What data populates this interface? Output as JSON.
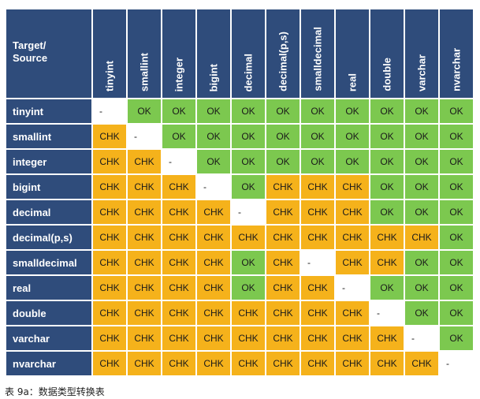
{
  "table": {
    "corner_line1": "Target/",
    "corner_line2": "Source",
    "columns": [
      "tinyint",
      "smallint",
      "integer",
      "bigint",
      "decimal",
      "decimal(p,s)",
      "smalldecimal",
      "real",
      "double",
      "varchar",
      "nvarchar"
    ],
    "rows": [
      {
        "label": "tinyint",
        "cells": [
          "-",
          "OK",
          "OK",
          "OK",
          "OK",
          "OK",
          "OK",
          "OK",
          "OK",
          "OK",
          "OK"
        ]
      },
      {
        "label": "smallint",
        "cells": [
          "CHK",
          "-",
          "OK",
          "OK",
          "OK",
          "OK",
          "OK",
          "OK",
          "OK",
          "OK",
          "OK"
        ]
      },
      {
        "label": "integer",
        "cells": [
          "CHK",
          "CHK",
          "-",
          "OK",
          "OK",
          "OK",
          "OK",
          "OK",
          "OK",
          "OK",
          "OK"
        ]
      },
      {
        "label": "bigint",
        "cells": [
          "CHK",
          "CHK",
          "CHK",
          "-",
          "OK",
          "CHK",
          "CHK",
          "CHK",
          "OK",
          "OK",
          "OK"
        ]
      },
      {
        "label": "decimal",
        "cells": [
          "CHK",
          "CHK",
          "CHK",
          "CHK",
          "-",
          "CHK",
          "CHK",
          "CHK",
          "OK",
          "OK",
          "OK"
        ]
      },
      {
        "label": "decimal(p,s)",
        "cells": [
          "CHK",
          "CHK",
          "CHK",
          "CHK",
          "CHK",
          "CHK",
          "CHK",
          "CHK",
          "CHK",
          "CHK",
          "OK"
        ]
      },
      {
        "label": "smalldecimal",
        "cells": [
          "CHK",
          "CHK",
          "CHK",
          "CHK",
          "OK",
          "CHK",
          "-",
          "CHK",
          "CHK",
          "OK",
          "OK"
        ]
      },
      {
        "label": "real",
        "cells": [
          "CHK",
          "CHK",
          "CHK",
          "CHK",
          "OK",
          "CHK",
          "CHK",
          "-",
          "OK",
          "OK",
          "OK"
        ]
      },
      {
        "label": "double",
        "cells": [
          "CHK",
          "CHK",
          "CHK",
          "CHK",
          "CHK",
          "CHK",
          "CHK",
          "CHK",
          "-",
          "OK",
          "OK"
        ]
      },
      {
        "label": "varchar",
        "cells": [
          "CHK",
          "CHK",
          "CHK",
          "CHK",
          "CHK",
          "CHK",
          "CHK",
          "CHK",
          "CHK",
          "-",
          "OK"
        ]
      },
      {
        "label": "nvarchar",
        "cells": [
          "CHK",
          "CHK",
          "CHK",
          "CHK",
          "CHK",
          "CHK",
          "CHK",
          "CHK",
          "CHK",
          "CHK",
          "-"
        ]
      }
    ]
  },
  "caption": "表 9a：数据类型转换表",
  "colors": {
    "header_bg": "#2f4c7b",
    "ok_bg": "#7cc84f",
    "chk_bg": "#f5b21b",
    "none_bg": "#ffffff"
  }
}
